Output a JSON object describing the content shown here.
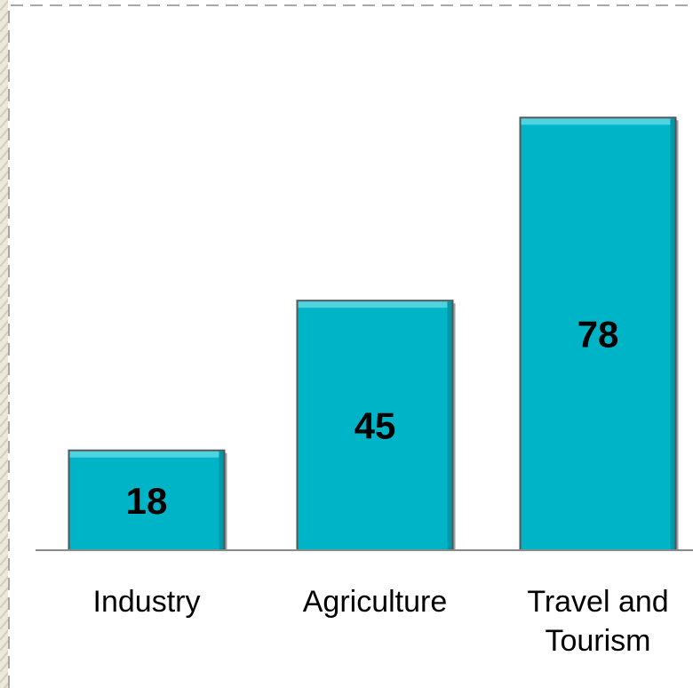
{
  "chart_data": {
    "type": "bar",
    "categories": [
      "Industry",
      "Agriculture",
      "Travel and Tourism"
    ],
    "values": [
      18,
      45,
      78
    ],
    "data_labels": [
      "18",
      "45",
      "78"
    ],
    "title": "",
    "xlabel": "",
    "ylabel": "",
    "ylim": [
      0,
      96
    ],
    "grid": false,
    "legend": "none",
    "colors": {
      "bar": "#00b4c8",
      "bar_top": "#4fd3e0",
      "bar_edge": "#555555",
      "axis": "#8a8a8a",
      "frame_dash": "#a8a8a8",
      "left_strip": "#d9d3c3"
    }
  }
}
